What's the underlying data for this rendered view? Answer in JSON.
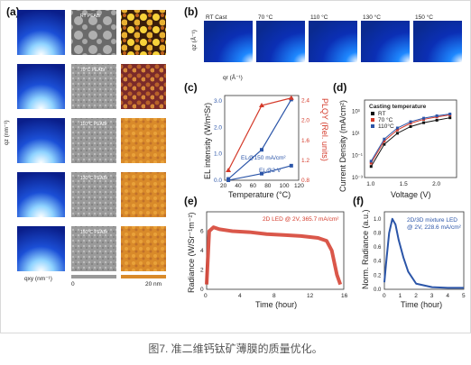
{
  "caption": "图7. 准二维钙钛矿薄膜的质量优化。",
  "panel_a": {
    "label": "(a)",
    "rows": [
      {
        "tag": "RT PEABr"
      },
      {
        "tag": "70°C PEABr"
      },
      {
        "tag": "110°C PEABr"
      },
      {
        "tag": "130°C PEABr"
      },
      {
        "tag": "150°C PEABr"
      }
    ],
    "xlabel": "qxy (nm⁻¹)",
    "ylabel": "qz (nm⁻¹)",
    "colorbar_left": "0",
    "colorbar_right": "20 nm"
  },
  "panel_b": {
    "label": "(b)",
    "titles": [
      "RT Cast",
      "70 °C",
      "110 °C",
      "130 °C",
      "150 °C"
    ],
    "ylabel": "qz (Å⁻¹)",
    "xlabel": "qr (Å⁻¹)",
    "xticks": [
      "2",
      "1.5",
      "1",
      "0.5",
      "0"
    ],
    "yticks": [
      "2",
      "1.5",
      "1",
      "0.5"
    ]
  },
  "panel_c": {
    "label": "(c)",
    "ylabel_left": "EL intensity (W/m²Sr)",
    "ylabel_right": "PLQY (Rel. units)",
    "xlabel": "Temperature (°C)",
    "annot1": "EL@150 mA/cm²",
    "annot2": "EL@2 V",
    "xticks": [
      "20",
      "40",
      "60",
      "80",
      "100",
      "120"
    ],
    "left_ticks": [
      "0.0",
      "1.0",
      "2.0",
      "3.0"
    ],
    "right_ticks": [
      "0.8",
      "1.2",
      "1.6",
      "2.0",
      "2.4"
    ]
  },
  "panel_d": {
    "label": "(d)",
    "legend_title": "Casting temperature",
    "legend": [
      "RT",
      "70 °C",
      "110°C"
    ],
    "ylabel": "Current Density (mA/cm²)",
    "xlabel": "Voltage (V)",
    "xticks": [
      "1.0",
      "1.5",
      "2.0"
    ],
    "yticks": [
      "10³",
      "10¹",
      "10⁻¹",
      "10⁻³"
    ]
  },
  "panel_e": {
    "label": "(e)",
    "annotation": "2D LED @ 2V, 365.7 mA/cm²",
    "ylabel": "Radiance (W/Sr⁻¹m⁻²)",
    "xlabel": "Time (hour)",
    "xticks": [
      "0",
      "4",
      "8",
      "12",
      "16"
    ],
    "yticks": [
      "0",
      "2",
      "4",
      "6"
    ]
  },
  "panel_f": {
    "label": "(f)",
    "annotation_line1": "2D/3D mixture LED",
    "annotation_line2": "@ 2V, 228.6 mA/cm²",
    "ylabel": "Norm. Radiance (a.u.)",
    "xlabel": "Time (hour)",
    "xticks": [
      "0",
      "1",
      "2",
      "3",
      "4",
      "5"
    ],
    "yticks": [
      "0.0",
      "0.2",
      "0.4",
      "0.6",
      "0.8",
      "1.0"
    ]
  },
  "chart_data": [
    {
      "type": "line",
      "panel": "c",
      "xlabel": "Temperature (°C)",
      "ylabel": "EL intensity (W/m²Sr)",
      "xlim": [
        20,
        120
      ],
      "series": [
        {
          "name": "EL@150 mA/cm²",
          "x": [
            25,
            70,
            110
          ],
          "y": [
            0.05,
            1.15,
            3.05
          ],
          "axis": "left",
          "color": "#2b55a8"
        },
        {
          "name": "EL@2 V",
          "x": [
            25,
            70,
            110
          ],
          "y": [
            0.0,
            0.25,
            0.55
          ],
          "axis": "left",
          "color": "#2b55a8"
        },
        {
          "name": "PLQY",
          "x": [
            25,
            70,
            110
          ],
          "y": [
            1.0,
            2.3,
            2.45
          ],
          "axis": "right",
          "color": "#d43a2a"
        }
      ]
    },
    {
      "type": "scatter",
      "panel": "d",
      "xlabel": "Voltage (V)",
      "ylabel": "Current Density (mA/cm²)",
      "scale": "log",
      "series": [
        {
          "name": "RT",
          "x": [
            1.0,
            1.2,
            1.4,
            1.6,
            1.8,
            2.0,
            2.2
          ],
          "y": [
            0.01,
            1,
            10,
            40,
            90,
            150,
            250
          ]
        },
        {
          "name": "70 °C",
          "x": [
            1.0,
            1.2,
            1.4,
            1.6,
            1.8,
            2.0,
            2.2
          ],
          "y": [
            0.02,
            2,
            20,
            80,
            180,
            300,
            450
          ]
        },
        {
          "name": "110°C",
          "x": [
            1.0,
            1.2,
            1.4,
            1.6,
            1.8,
            2.0,
            2.2
          ],
          "y": [
            0.03,
            3,
            30,
            110,
            230,
            380,
            550
          ]
        }
      ]
    },
    {
      "type": "line",
      "panel": "e",
      "xlabel": "Time (hour)",
      "ylabel": "Radiance (W/Sr⁻¹m⁻²)",
      "xlim": [
        0,
        16
      ],
      "ylim": [
        0,
        8
      ],
      "series": [
        {
          "name": "2D LED @ 2V, 365.7 mA/cm²",
          "x": [
            0,
            0.3,
            0.8,
            1.5,
            3,
            5,
            7,
            9,
            11,
            13,
            14,
            14.6,
            15.2,
            15.6
          ],
          "y": [
            0.5,
            6.0,
            6.4,
            6.2,
            6.0,
            5.9,
            5.7,
            5.6,
            5.5,
            5.3,
            5.0,
            4.0,
            1.5,
            0.5
          ]
        }
      ]
    },
    {
      "type": "line",
      "panel": "f",
      "xlabel": "Time (hour)",
      "ylabel": "Norm. Radiance (a.u.)",
      "xlim": [
        0,
        5
      ],
      "ylim": [
        0,
        1
      ],
      "series": [
        {
          "name": "2D/3D mixture LED @ 2V, 228.6 mA/cm²",
          "x": [
            0,
            0.1,
            0.3,
            0.5,
            0.7,
            0.9,
            1.2,
            1.5,
            2.0,
            3.0,
            4.0,
            5.0
          ],
          "y": [
            0.1,
            0.35,
            0.8,
            1.0,
            0.92,
            0.7,
            0.45,
            0.25,
            0.08,
            0.03,
            0.02,
            0.02
          ]
        }
      ]
    }
  ]
}
